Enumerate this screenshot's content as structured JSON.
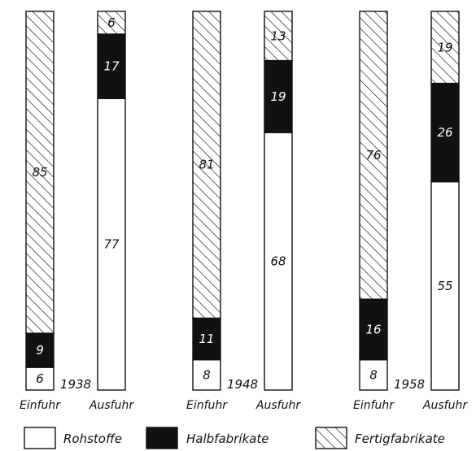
{
  "chart_data": {
    "type": "bar",
    "stacked": true,
    "orientation": "vertical",
    "unit": "",
    "groups": [
      {
        "year": "1938",
        "bars": [
          {
            "label": "Einfuhr",
            "Rohstoffe": 6,
            "Halbfabrikate": 9,
            "Fertigfabrikate": 85
          },
          {
            "label": "Ausfuhr",
            "Rohstoffe": 77,
            "Halbfabrikate": 17,
            "Fertigfabrikate": 6
          }
        ]
      },
      {
        "year": "1948",
        "bars": [
          {
            "label": "Einfuhr",
            "Rohstoffe": 8,
            "Halbfabrikate": 11,
            "Fertigfabrikate": 81
          },
          {
            "label": "Ausfuhr",
            "Rohstoffe": 68,
            "Halbfabrikate": 19,
            "Fertigfabrikate": 13
          }
        ]
      },
      {
        "year": "1958",
        "bars": [
          {
            "label": "Einfuhr",
            "Rohstoffe": 8,
            "Halbfabrikate": 16,
            "Fertigfabrikate": 76
          },
          {
            "label": "Ausfuhr",
            "Rohstoffe": 55,
            "Halbfabrikate": 26,
            "Fertigfabrikate": 19
          }
        ]
      }
    ],
    "series": [
      {
        "name": "Rohstoffe",
        "style": "white",
        "color": "#ffffff"
      },
      {
        "name": "Halbfabrikate",
        "style": "black",
        "color": "#111111"
      },
      {
        "name": "Fertigfabrikate",
        "style": "hatched",
        "color": "#111111"
      }
    ],
    "legend_position": "bottom"
  }
}
